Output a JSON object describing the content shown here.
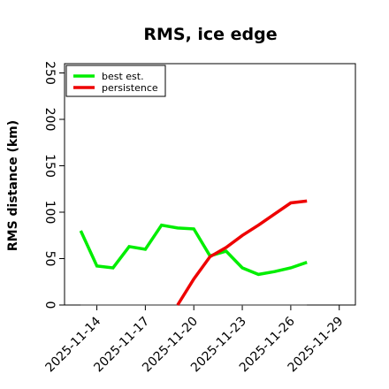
{
  "chart_data": {
    "type": "line",
    "title": "RMS, ice edge",
    "xlabel": "",
    "ylabel": "RMS distance (km)",
    "xlim": [
      "2025-11-12",
      "2025-11-30"
    ],
    "ylim": [
      0,
      260
    ],
    "yticks": [
      0,
      50,
      100,
      150,
      200,
      250
    ],
    "xticks": [
      "2025-11-14",
      "2025-11-17",
      "2025-11-20",
      "2025-11-23",
      "2025-11-26",
      "2025-11-29"
    ],
    "grid": false,
    "legend_position": "top-left",
    "reference_line": {
      "y": 0,
      "x_start": "2025-11-13",
      "x_end": "2025-11-27",
      "color": "#555555"
    },
    "series": [
      {
        "name": "best est.",
        "color": "#00ee00",
        "points": [
          [
            "2025-11-13",
            80
          ],
          [
            "2025-11-14",
            42
          ],
          [
            "2025-11-15",
            40
          ],
          [
            "2025-11-16",
            63
          ],
          [
            "2025-11-17",
            60
          ],
          [
            "2025-11-18",
            86
          ],
          [
            "2025-11-19",
            83
          ],
          [
            "2025-11-20",
            82
          ],
          [
            "2025-11-21",
            53
          ],
          [
            "2025-11-22",
            58
          ],
          [
            "2025-11-23",
            40
          ],
          [
            "2025-11-24",
            33
          ],
          [
            "2025-11-25",
            36
          ],
          [
            "2025-11-26",
            40
          ],
          [
            "2025-11-27",
            46
          ]
        ]
      },
      {
        "name": "persistence",
        "color": "#ee0000",
        "points": [
          [
            "2025-11-19",
            0
          ],
          [
            "2025-11-20",
            28
          ],
          [
            "2025-11-21",
            52
          ],
          [
            "2025-11-22",
            62
          ],
          [
            "2025-11-23",
            75
          ],
          [
            "2025-11-24",
            86
          ],
          [
            "2025-11-25",
            98
          ],
          [
            "2025-11-26",
            110
          ],
          [
            "2025-11-27",
            112
          ]
        ]
      }
    ]
  }
}
